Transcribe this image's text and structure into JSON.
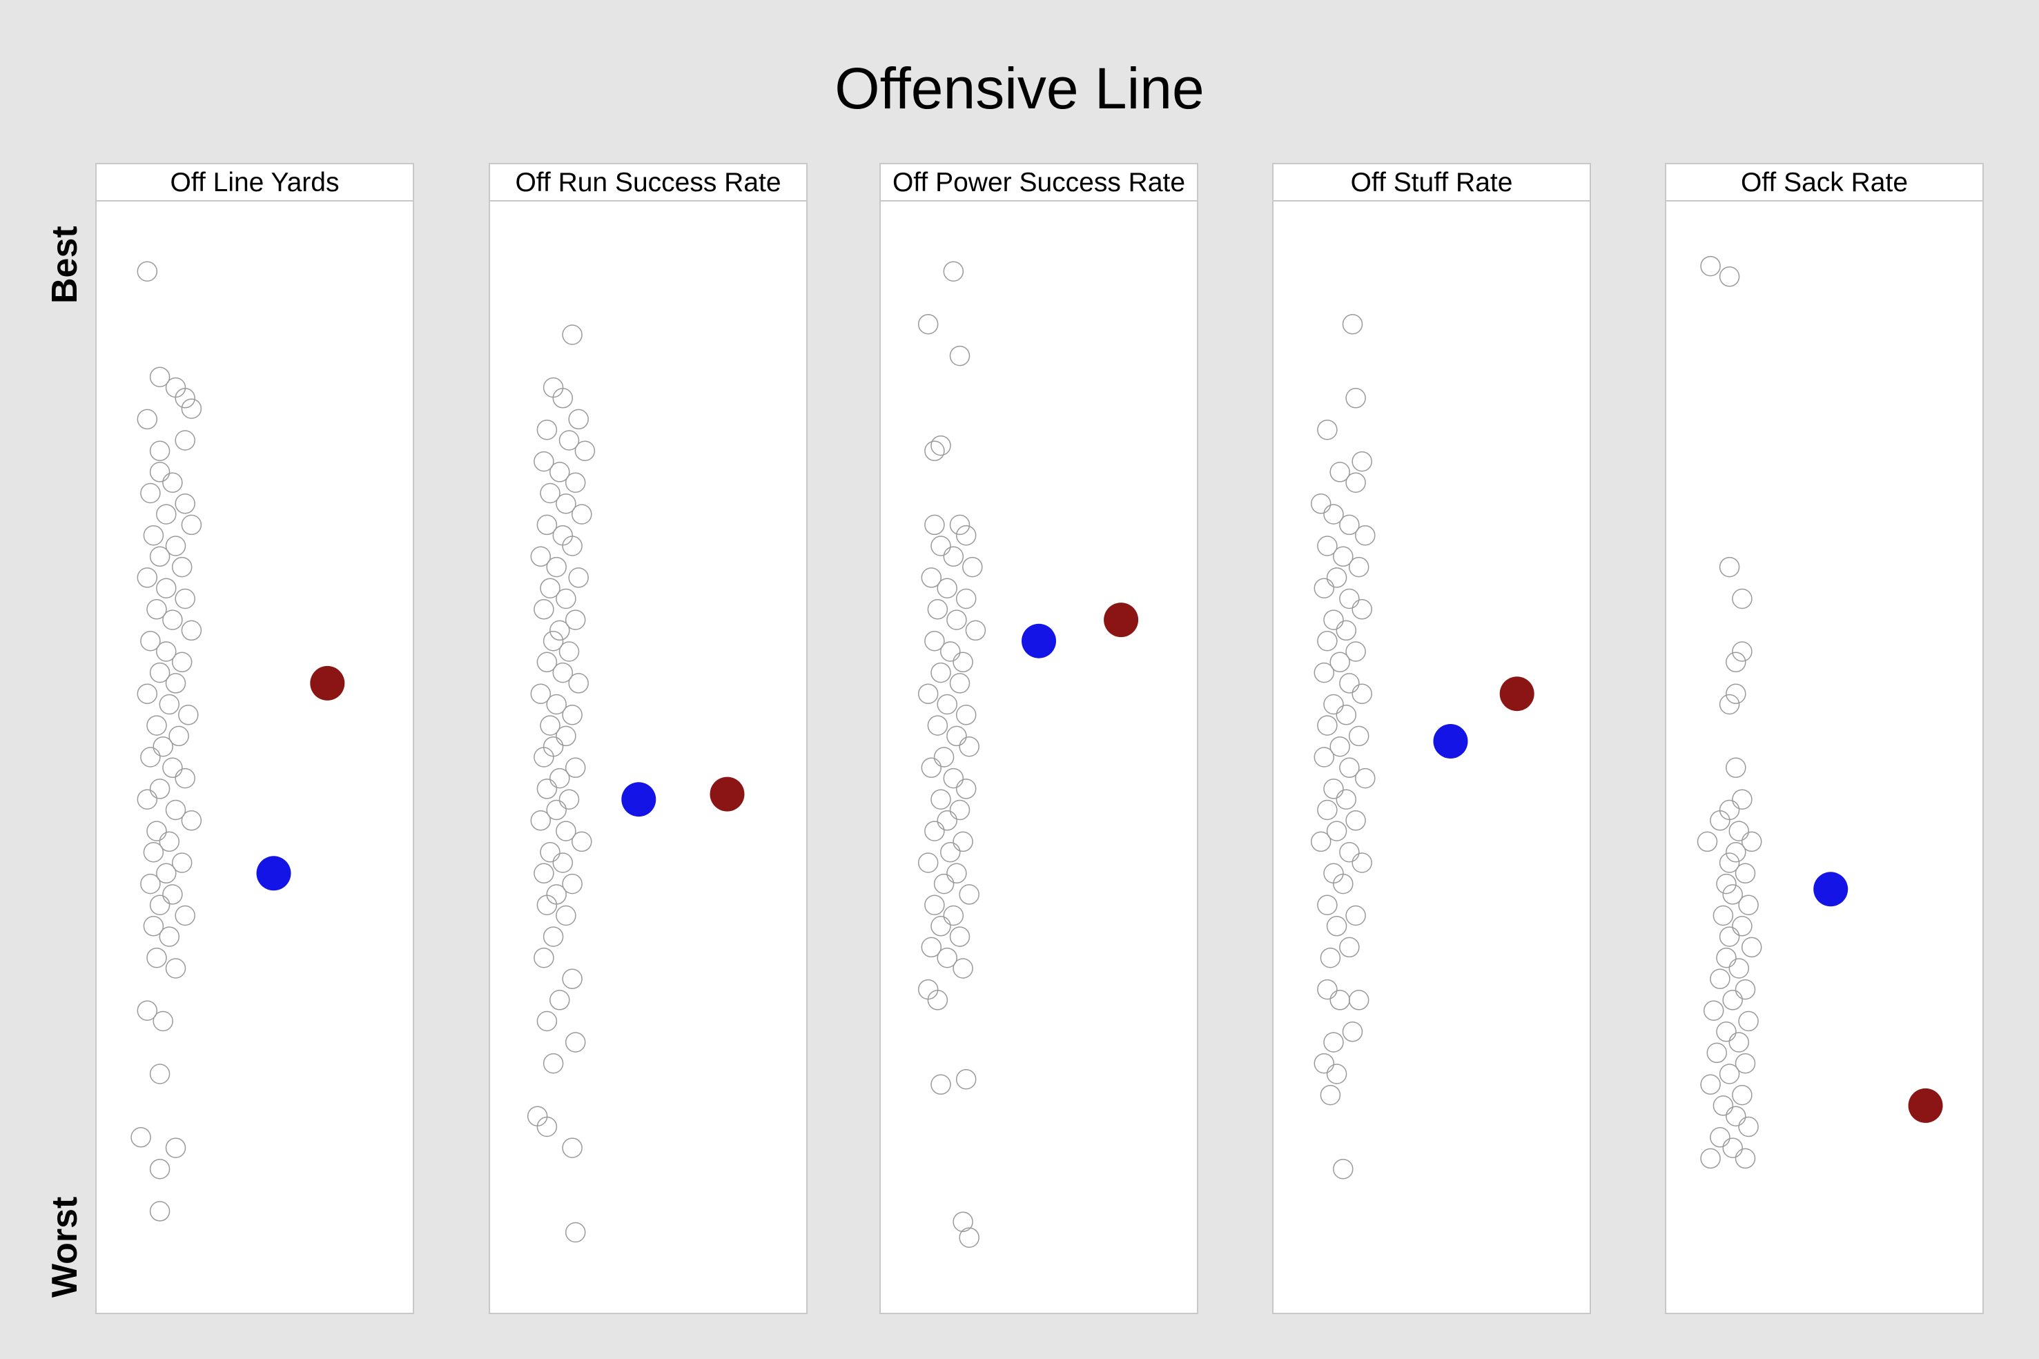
{
  "title": "Offensive Line",
  "y_top_label": "Best",
  "y_bottom_label": "Worst",
  "colors": {
    "background": "#e5e5e5",
    "panel_background": "#ffffff",
    "panel_border": "#c8c8c8",
    "league_point_stroke": "#9a9a9a",
    "highlight_blue": "#1414e6",
    "highlight_red": "#8b1414"
  },
  "chart_data": {
    "type": "scatter",
    "description_of_scale": "Panels are individual-value plots; vertical position is a relative rank from Best (top) to Worst (bottom) with no printed numeric scale; values are on a 0-100 relative scale (100 = Best). x is horizontal jitter within the panel.",
    "ylim": [
      0,
      100
    ],
    "grid": false,
    "legend": "none",
    "panels": [
      {
        "title": "Off Line Yards",
        "league": [
          [
            0.16,
            96
          ],
          [
            0.2,
            86
          ],
          [
            0.25,
            85
          ],
          [
            0.28,
            84
          ],
          [
            0.3,
            83
          ],
          [
            0.16,
            82
          ],
          [
            0.28,
            80
          ],
          [
            0.2,
            79
          ],
          [
            0.2,
            77
          ],
          [
            0.24,
            76
          ],
          [
            0.17,
            75
          ],
          [
            0.28,
            74
          ],
          [
            0.22,
            73
          ],
          [
            0.3,
            72
          ],
          [
            0.18,
            71
          ],
          [
            0.25,
            70
          ],
          [
            0.2,
            69
          ],
          [
            0.27,
            68
          ],
          [
            0.16,
            67
          ],
          [
            0.22,
            66
          ],
          [
            0.28,
            65
          ],
          [
            0.19,
            64
          ],
          [
            0.24,
            63
          ],
          [
            0.3,
            62
          ],
          [
            0.17,
            61
          ],
          [
            0.22,
            60
          ],
          [
            0.27,
            59
          ],
          [
            0.2,
            58
          ],
          [
            0.25,
            57
          ],
          [
            0.16,
            56
          ],
          [
            0.23,
            55
          ],
          [
            0.29,
            54
          ],
          [
            0.19,
            53
          ],
          [
            0.26,
            52
          ],
          [
            0.21,
            51
          ],
          [
            0.17,
            50
          ],
          [
            0.24,
            49
          ],
          [
            0.28,
            48
          ],
          [
            0.2,
            47
          ],
          [
            0.16,
            46
          ],
          [
            0.25,
            45
          ],
          [
            0.3,
            44
          ],
          [
            0.19,
            43
          ],
          [
            0.23,
            42
          ],
          [
            0.18,
            41
          ],
          [
            0.27,
            40
          ],
          [
            0.22,
            39
          ],
          [
            0.17,
            38
          ],
          [
            0.24,
            37
          ],
          [
            0.2,
            36
          ],
          [
            0.28,
            35
          ],
          [
            0.18,
            34
          ],
          [
            0.23,
            33
          ],
          [
            0.19,
            31
          ],
          [
            0.25,
            30
          ],
          [
            0.16,
            26
          ],
          [
            0.21,
            25
          ],
          [
            0.2,
            20
          ],
          [
            0.14,
            14
          ],
          [
            0.25,
            13
          ],
          [
            0.2,
            11
          ],
          [
            0.2,
            7
          ]
        ],
        "highlights": [
          {
            "color": "red",
            "x": 0.73,
            "y": 57
          },
          {
            "color": "blue",
            "x": 0.56,
            "y": 39
          }
        ]
      },
      {
        "title": "Off Run Success Rate",
        "league": [
          [
            0.26,
            90
          ],
          [
            0.2,
            85
          ],
          [
            0.23,
            84
          ],
          [
            0.28,
            82
          ],
          [
            0.18,
            81
          ],
          [
            0.25,
            80
          ],
          [
            0.3,
            79
          ],
          [
            0.17,
            78
          ],
          [
            0.22,
            77
          ],
          [
            0.27,
            76
          ],
          [
            0.19,
            75
          ],
          [
            0.24,
            74
          ],
          [
            0.29,
            73
          ],
          [
            0.18,
            72
          ],
          [
            0.23,
            71
          ],
          [
            0.26,
            70
          ],
          [
            0.16,
            69
          ],
          [
            0.21,
            68
          ],
          [
            0.28,
            67
          ],
          [
            0.19,
            66
          ],
          [
            0.24,
            65
          ],
          [
            0.17,
            64
          ],
          [
            0.27,
            63
          ],
          [
            0.22,
            62
          ],
          [
            0.2,
            61
          ],
          [
            0.25,
            60
          ],
          [
            0.18,
            59
          ],
          [
            0.23,
            58
          ],
          [
            0.28,
            57
          ],
          [
            0.16,
            56
          ],
          [
            0.21,
            55
          ],
          [
            0.26,
            54
          ],
          [
            0.19,
            53
          ],
          [
            0.24,
            52
          ],
          [
            0.2,
            51
          ],
          [
            0.17,
            50
          ],
          [
            0.27,
            49
          ],
          [
            0.22,
            48
          ],
          [
            0.18,
            47
          ],
          [
            0.25,
            46
          ],
          [
            0.21,
            45
          ],
          [
            0.16,
            44
          ],
          [
            0.24,
            43
          ],
          [
            0.29,
            42
          ],
          [
            0.19,
            41
          ],
          [
            0.23,
            40
          ],
          [
            0.17,
            39
          ],
          [
            0.26,
            38
          ],
          [
            0.21,
            37
          ],
          [
            0.18,
            36
          ],
          [
            0.24,
            35
          ],
          [
            0.2,
            33
          ],
          [
            0.17,
            31
          ],
          [
            0.26,
            29
          ],
          [
            0.22,
            27
          ],
          [
            0.18,
            25
          ],
          [
            0.27,
            23
          ],
          [
            0.2,
            21
          ],
          [
            0.15,
            16
          ],
          [
            0.18,
            15
          ],
          [
            0.26,
            13
          ],
          [
            0.27,
            5
          ]
        ],
        "highlights": [
          {
            "color": "blue",
            "x": 0.47,
            "y": 46
          },
          {
            "color": "red",
            "x": 0.75,
            "y": 46.5
          }
        ]
      },
      {
        "title": "Off Power Success Rate",
        "league": [
          [
            0.23,
            96
          ],
          [
            0.15,
            91
          ],
          [
            0.25,
            88
          ],
          [
            0.17,
            79
          ],
          [
            0.19,
            79.5
          ],
          [
            0.17,
            72
          ],
          [
            0.25,
            72
          ],
          [
            0.27,
            71
          ],
          [
            0.19,
            70
          ],
          [
            0.23,
            69
          ],
          [
            0.29,
            68
          ],
          [
            0.16,
            67
          ],
          [
            0.21,
            66
          ],
          [
            0.27,
            65
          ],
          [
            0.18,
            64
          ],
          [
            0.24,
            63
          ],
          [
            0.3,
            62
          ],
          [
            0.17,
            61
          ],
          [
            0.22,
            60
          ],
          [
            0.26,
            59
          ],
          [
            0.19,
            58
          ],
          [
            0.25,
            57
          ],
          [
            0.15,
            56
          ],
          [
            0.21,
            55
          ],
          [
            0.27,
            54
          ],
          [
            0.18,
            53
          ],
          [
            0.24,
            52
          ],
          [
            0.28,
            51
          ],
          [
            0.2,
            50
          ],
          [
            0.16,
            49
          ],
          [
            0.23,
            48
          ],
          [
            0.27,
            47
          ],
          [
            0.19,
            46
          ],
          [
            0.25,
            45
          ],
          [
            0.21,
            44
          ],
          [
            0.17,
            43
          ],
          [
            0.26,
            42
          ],
          [
            0.22,
            41
          ],
          [
            0.15,
            40
          ],
          [
            0.24,
            39
          ],
          [
            0.2,
            38
          ],
          [
            0.28,
            37
          ],
          [
            0.17,
            36
          ],
          [
            0.23,
            35
          ],
          [
            0.19,
            34
          ],
          [
            0.25,
            33
          ],
          [
            0.16,
            32
          ],
          [
            0.21,
            31
          ],
          [
            0.26,
            30
          ],
          [
            0.15,
            28
          ],
          [
            0.18,
            27
          ],
          [
            0.19,
            19
          ],
          [
            0.27,
            19.5
          ],
          [
            0.26,
            6
          ],
          [
            0.28,
            4.5
          ]
        ],
        "highlights": [
          {
            "color": "blue",
            "x": 0.5,
            "y": 61
          },
          {
            "color": "red",
            "x": 0.76,
            "y": 63
          }
        ]
      },
      {
        "title": "Off Stuff Rate",
        "league": [
          [
            0.25,
            91
          ],
          [
            0.26,
            84
          ],
          [
            0.17,
            81
          ],
          [
            0.28,
            78
          ],
          [
            0.21,
            77
          ],
          [
            0.26,
            76
          ],
          [
            0.15,
            74
          ],
          [
            0.19,
            73
          ],
          [
            0.24,
            72
          ],
          [
            0.29,
            71
          ],
          [
            0.17,
            70
          ],
          [
            0.22,
            69
          ],
          [
            0.27,
            68
          ],
          [
            0.2,
            67
          ],
          [
            0.16,
            66
          ],
          [
            0.24,
            65
          ],
          [
            0.28,
            64
          ],
          [
            0.19,
            63
          ],
          [
            0.23,
            62
          ],
          [
            0.17,
            61
          ],
          [
            0.26,
            60
          ],
          [
            0.21,
            59
          ],
          [
            0.16,
            58
          ],
          [
            0.24,
            57
          ],
          [
            0.28,
            56
          ],
          [
            0.19,
            55
          ],
          [
            0.23,
            54
          ],
          [
            0.17,
            53
          ],
          [
            0.27,
            52
          ],
          [
            0.21,
            51
          ],
          [
            0.16,
            50
          ],
          [
            0.24,
            49
          ],
          [
            0.29,
            48
          ],
          [
            0.19,
            47
          ],
          [
            0.23,
            46
          ],
          [
            0.17,
            45
          ],
          [
            0.26,
            44
          ],
          [
            0.2,
            43
          ],
          [
            0.15,
            42
          ],
          [
            0.24,
            41
          ],
          [
            0.28,
            40
          ],
          [
            0.19,
            39
          ],
          [
            0.22,
            38
          ],
          [
            0.17,
            36
          ],
          [
            0.26,
            35
          ],
          [
            0.2,
            34
          ],
          [
            0.24,
            32
          ],
          [
            0.18,
            31
          ],
          [
            0.17,
            28
          ],
          [
            0.21,
            27
          ],
          [
            0.27,
            27
          ],
          [
            0.25,
            24
          ],
          [
            0.19,
            23
          ],
          [
            0.16,
            21
          ],
          [
            0.2,
            20
          ],
          [
            0.18,
            18
          ],
          [
            0.22,
            11
          ]
        ],
        "highlights": [
          {
            "color": "blue",
            "x": 0.56,
            "y": 51.5
          },
          {
            "color": "red",
            "x": 0.77,
            "y": 56
          }
        ]
      },
      {
        "title": "Off Sack Rate",
        "league": [
          [
            0.14,
            96.5
          ],
          [
            0.2,
            95.5
          ],
          [
            0.2,
            68
          ],
          [
            0.24,
            65
          ],
          [
            0.24,
            60
          ],
          [
            0.22,
            59
          ],
          [
            0.22,
            56
          ],
          [
            0.2,
            55
          ],
          [
            0.22,
            49
          ],
          [
            0.24,
            46
          ],
          [
            0.2,
            45
          ],
          [
            0.17,
            44
          ],
          [
            0.23,
            43
          ],
          [
            0.13,
            42
          ],
          [
            0.27,
            42
          ],
          [
            0.22,
            41
          ],
          [
            0.2,
            40
          ],
          [
            0.25,
            39
          ],
          [
            0.19,
            38
          ],
          [
            0.21,
            37
          ],
          [
            0.26,
            36
          ],
          [
            0.18,
            35
          ],
          [
            0.24,
            34
          ],
          [
            0.2,
            33
          ],
          [
            0.27,
            32
          ],
          [
            0.19,
            31
          ],
          [
            0.23,
            30
          ],
          [
            0.17,
            29
          ],
          [
            0.25,
            28
          ],
          [
            0.21,
            27
          ],
          [
            0.15,
            26
          ],
          [
            0.26,
            25
          ],
          [
            0.19,
            24
          ],
          [
            0.23,
            23
          ],
          [
            0.16,
            22
          ],
          [
            0.25,
            21
          ],
          [
            0.2,
            20
          ],
          [
            0.14,
            19
          ],
          [
            0.24,
            18
          ],
          [
            0.18,
            17
          ],
          [
            0.22,
            16
          ],
          [
            0.26,
            15
          ],
          [
            0.17,
            14
          ],
          [
            0.21,
            13
          ],
          [
            0.25,
            12
          ],
          [
            0.14,
            12
          ]
        ],
        "highlights": [
          {
            "color": "blue",
            "x": 0.52,
            "y": 37.5
          },
          {
            "color": "red",
            "x": 0.82,
            "y": 17
          }
        ]
      }
    ]
  }
}
